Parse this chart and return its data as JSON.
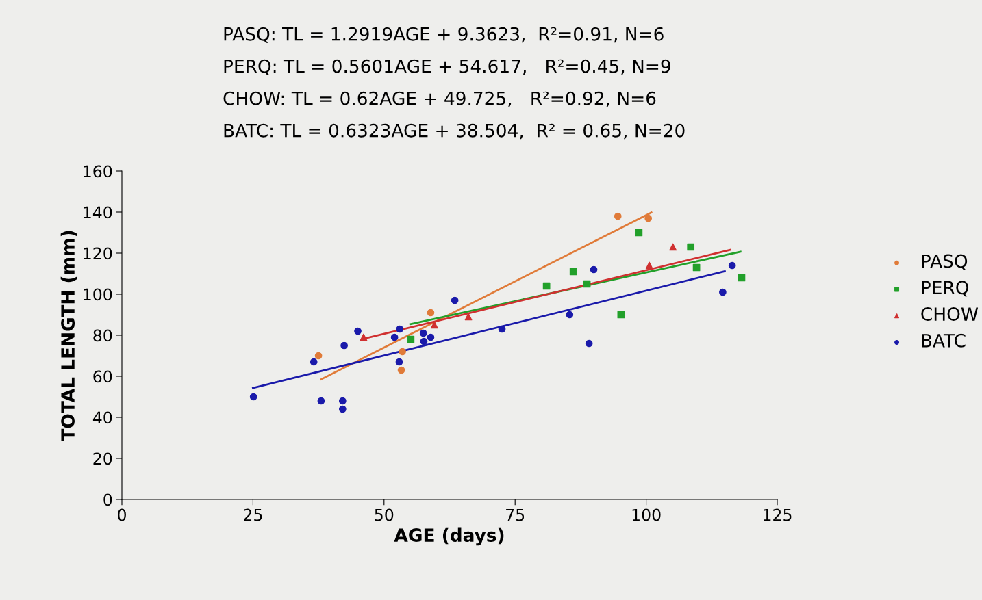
{
  "chart_data": {
    "type": "scatter",
    "xlabel": "AGE (days)",
    "ylabel": "TOTAL LENGTH (mm)",
    "annotations": [
      "PASQ: TL = 1.2919AGE + 9.3623,  R²=0.91, N=6",
      "PERQ: TL = 0.5601AGE + 54.617,   R²=0.45, N=9",
      "CHOW: TL = 0.62AGE + 49.725,   R²=0.92, N=6",
      "BATC: TL = 0.6323AGE + 38.504,  R² = 0.65, N=20"
    ],
    "xlim": [
      0,
      125
    ],
    "xticks": [
      0,
      25,
      50,
      75,
      100,
      125
    ],
    "ylim": [
      0,
      160
    ],
    "yticks": [
      0,
      20,
      40,
      60,
      80,
      100,
      120,
      140,
      160
    ],
    "grid": false,
    "legend": "right",
    "series": [
      {
        "name": "PASQ",
        "color": "#e07b39",
        "marker": "circle",
        "x": [
          37.5,
          53.3,
          53.5,
          58.9,
          94.6,
          100.4
        ],
        "values": [
          70,
          63,
          72,
          91,
          138,
          137
        ]
      },
      {
        "name": "PERQ",
        "color": "#22a02a",
        "marker": "square",
        "x": [
          55.1,
          81,
          86.1,
          88.7,
          95.2,
          98.6,
          108.5,
          109.6,
          118.2
        ],
        "values": [
          78,
          104,
          111,
          105,
          90,
          130,
          123,
          113,
          108
        ]
      },
      {
        "name": "CHOW",
        "color": "#d03030",
        "marker": "triangle",
        "x": [
          46.1,
          59.6,
          66.1,
          100.6,
          105.1
        ],
        "values": [
          79,
          85,
          89,
          114,
          123
        ]
      },
      {
        "name": "BATC",
        "color": "#1a1aaa",
        "marker": "circle",
        "x": [
          25.1,
          36.6,
          38,
          42.4,
          42.1,
          42.1,
          45,
          52,
          53,
          52.9,
          57.5,
          57.6,
          58.9,
          63.5,
          72.5,
          85.4,
          89.1,
          90,
          114.6,
          116.4
        ],
        "values": [
          50,
          67,
          48,
          75,
          48,
          44,
          82,
          79,
          83,
          67,
          81,
          77,
          79,
          97,
          83,
          90,
          76,
          112,
          101,
          114
        ]
      },
      {
        "type": "line",
        "color": "#e07b39",
        "x": [
          38,
          101
        ],
        "values": [
          58.5,
          139.8
        ]
      },
      {
        "type": "line",
        "color": "#22a02a",
        "x": [
          55,
          118
        ],
        "values": [
          85.4,
          120.7
        ]
      },
      {
        "type": "line",
        "color": "#d03030",
        "x": [
          46,
          116
        ],
        "values": [
          78.2,
          121.6
        ]
      },
      {
        "type": "line",
        "color": "#1a1aaa",
        "x": [
          25,
          115
        ],
        "values": [
          54.3,
          111.2
        ]
      }
    ]
  }
}
